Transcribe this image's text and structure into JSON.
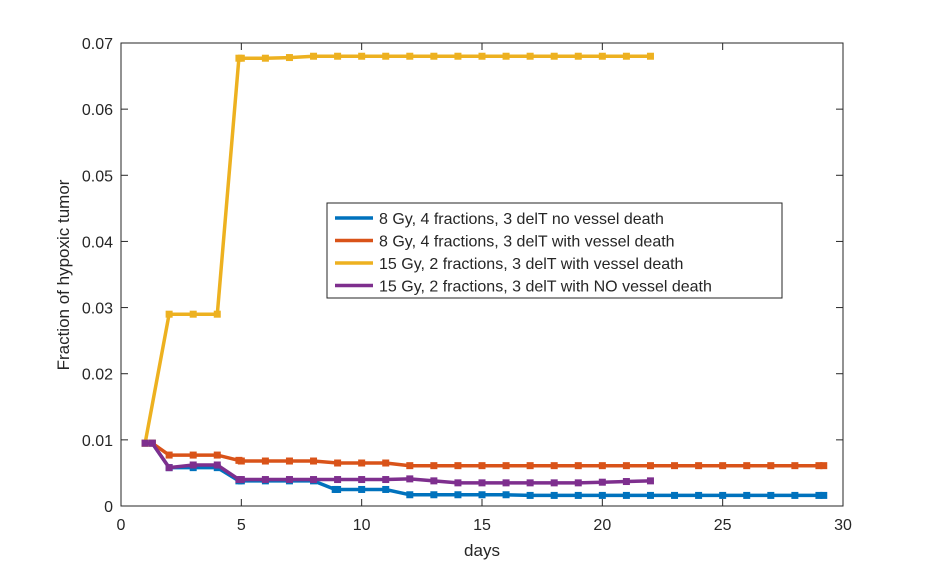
{
  "chart_data": {
    "type": "line",
    "title": "",
    "xlabel": "days",
    "ylabel": "Fraction of hypoxic tumor",
    "xlim": [
      0,
      30
    ],
    "ylim": [
      0,
      0.07
    ],
    "xticks": [
      0,
      5,
      10,
      15,
      20,
      25,
      30
    ],
    "yticks": [
      0,
      0.01,
      0.02,
      0.03,
      0.04,
      0.05,
      0.06,
      0.07
    ],
    "xtick_labels": [
      "0",
      "5",
      "10",
      "15",
      "20",
      "25",
      "30"
    ],
    "ytick_labels": [
      "0",
      "0.01",
      "0.02",
      "0.03",
      "0.04",
      "0.05",
      "0.06",
      "0.07"
    ],
    "grid": false,
    "legend_position": "center",
    "series": [
      {
        "name": "8 Gy, 4 fractions, 3 delT no vessel death",
        "color": "#0072BD",
        "points": [
          [
            1,
            0.0095
          ],
          [
            1.3,
            0.0095
          ],
          [
            2,
            0.0058
          ],
          [
            3,
            0.0058
          ],
          [
            4,
            0.0058
          ],
          [
            4.9,
            0.0038
          ],
          [
            5,
            0.0038
          ],
          [
            6,
            0.0038
          ],
          [
            7,
            0.0038
          ],
          [
            8,
            0.0038
          ],
          [
            8.9,
            0.0025
          ],
          [
            9,
            0.0025
          ],
          [
            10,
            0.0025
          ],
          [
            11,
            0.0025
          ],
          [
            12,
            0.0017
          ],
          [
            13,
            0.0017
          ],
          [
            14,
            0.0017
          ],
          [
            15,
            0.0017
          ],
          [
            16,
            0.0017
          ],
          [
            17,
            0.0016
          ],
          [
            18,
            0.0016
          ],
          [
            19,
            0.0016
          ],
          [
            20,
            0.0016
          ],
          [
            21,
            0.0016
          ],
          [
            22,
            0.0016
          ],
          [
            23,
            0.0016
          ],
          [
            24,
            0.0016
          ],
          [
            25,
            0.0016
          ],
          [
            26,
            0.0016
          ],
          [
            27,
            0.0016
          ],
          [
            28,
            0.0016
          ],
          [
            29,
            0.0016
          ],
          [
            29.2,
            0.0016
          ]
        ]
      },
      {
        "name": "8 Gy, 4 fractions, 3 delT with vessel death",
        "color": "#D95319",
        "points": [
          [
            1,
            0.0095
          ],
          [
            1.3,
            0.0095
          ],
          [
            2,
            0.0077
          ],
          [
            3,
            0.0077
          ],
          [
            4,
            0.0077
          ],
          [
            4.9,
            0.0069
          ],
          [
            5,
            0.0068
          ],
          [
            6,
            0.0068
          ],
          [
            7,
            0.0068
          ],
          [
            8,
            0.0068
          ],
          [
            9,
            0.0065
          ],
          [
            10,
            0.0065
          ],
          [
            11,
            0.0065
          ],
          [
            12,
            0.0061
          ],
          [
            13,
            0.0061
          ],
          [
            14,
            0.0061
          ],
          [
            15,
            0.0061
          ],
          [
            16,
            0.0061
          ],
          [
            17,
            0.0061
          ],
          [
            18,
            0.0061
          ],
          [
            19,
            0.0061
          ],
          [
            20,
            0.0061
          ],
          [
            21,
            0.0061
          ],
          [
            22,
            0.0061
          ],
          [
            23,
            0.0061
          ],
          [
            24,
            0.0061
          ],
          [
            25,
            0.0061
          ],
          [
            26,
            0.0061
          ],
          [
            27,
            0.0061
          ],
          [
            28,
            0.0061
          ],
          [
            29,
            0.0061
          ],
          [
            29.2,
            0.0061
          ]
        ]
      },
      {
        "name": "15 Gy, 2 fractions, 3 delT with vessel death",
        "color": "#EDB120",
        "points": [
          [
            1,
            0.0095
          ],
          [
            2,
            0.029
          ],
          [
            3,
            0.029
          ],
          [
            4,
            0.029
          ],
          [
            4.9,
            0.0677
          ],
          [
            5,
            0.0677
          ],
          [
            6,
            0.0677
          ],
          [
            7,
            0.0678
          ],
          [
            8,
            0.068
          ],
          [
            9,
            0.068
          ],
          [
            10,
            0.068
          ],
          [
            11,
            0.068
          ],
          [
            12,
            0.068
          ],
          [
            13,
            0.068
          ],
          [
            14,
            0.068
          ],
          [
            15,
            0.068
          ],
          [
            16,
            0.068
          ],
          [
            17,
            0.068
          ],
          [
            18,
            0.068
          ],
          [
            19,
            0.068
          ],
          [
            20,
            0.068
          ],
          [
            21,
            0.068
          ],
          [
            22,
            0.068
          ]
        ]
      },
      {
        "name": "15 Gy, 2 fractions, 3 delT with NO vessel death",
        "color": "#7E2F8E",
        "points": [
          [
            1,
            0.0095
          ],
          [
            1.3,
            0.0095
          ],
          [
            2,
            0.0058
          ],
          [
            3,
            0.0062
          ],
          [
            4,
            0.0062
          ],
          [
            4.9,
            0.004
          ],
          [
            5,
            0.004
          ],
          [
            6,
            0.004
          ],
          [
            7,
            0.004
          ],
          [
            8,
            0.004
          ],
          [
            9,
            0.004
          ],
          [
            10,
            0.004
          ],
          [
            11,
            0.004
          ],
          [
            12,
            0.0041
          ],
          [
            13,
            0.0038
          ],
          [
            14,
            0.0035
          ],
          [
            15,
            0.0035
          ],
          [
            16,
            0.0035
          ],
          [
            17,
            0.0035
          ],
          [
            18,
            0.0035
          ],
          [
            19,
            0.0035
          ],
          [
            20,
            0.0036
          ],
          [
            21,
            0.0037
          ],
          [
            22,
            0.0038
          ]
        ]
      }
    ]
  }
}
